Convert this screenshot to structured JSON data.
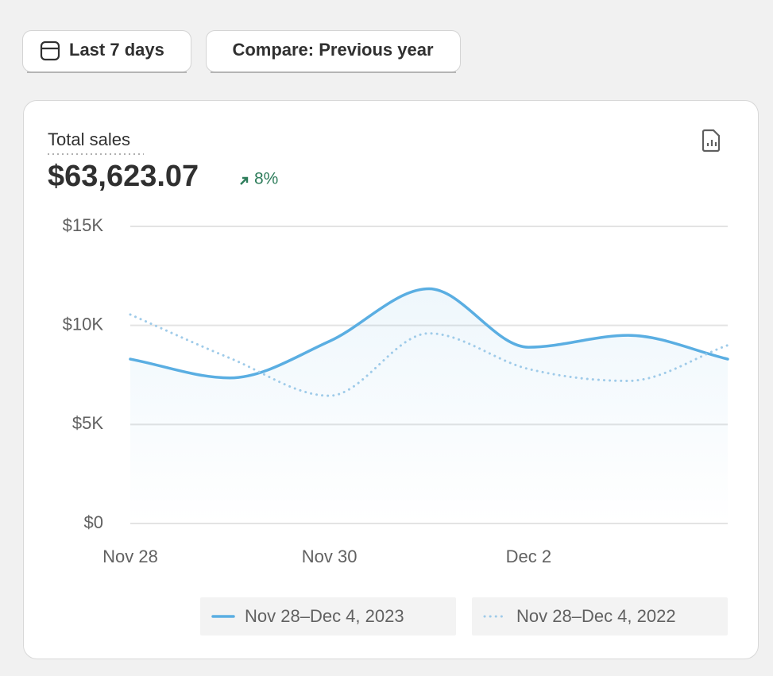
{
  "buttons": [
    {
      "label": "Last 7 days"
    },
    {
      "label": "Compare: Previous year"
    }
  ],
  "card": {
    "title": "Total sales",
    "total": "$63,623.07",
    "change": "8%"
  },
  "chart_data": {
    "type": "line",
    "categories": [
      "Nov 28",
      null,
      "Nov 30",
      null,
      "Dec 2",
      null,
      null
    ],
    "series": [
      {
        "name": "Nov 28–Dec 4, 2023",
        "color": "#5aaee2",
        "style": "solid",
        "fill": true,
        "values": [
          8300,
          7350,
          9200,
          11850,
          8900,
          9500,
          8300
        ]
      },
      {
        "name": "Nov 28–Dec 4, 2022",
        "color": "#9fcbe9",
        "style": "dotted",
        "fill": false,
        "values": [
          10550,
          8350,
          6450,
          9600,
          7800,
          7200,
          9000
        ]
      }
    ],
    "ylim": [
      0,
      15000
    ],
    "yticks": [
      {
        "value": 0,
        "label": "$0"
      },
      {
        "value": 5000,
        "label": "$5K"
      },
      {
        "value": 10000,
        "label": "$10K"
      },
      {
        "value": 15000,
        "label": "$15K"
      }
    ],
    "grid": true
  }
}
